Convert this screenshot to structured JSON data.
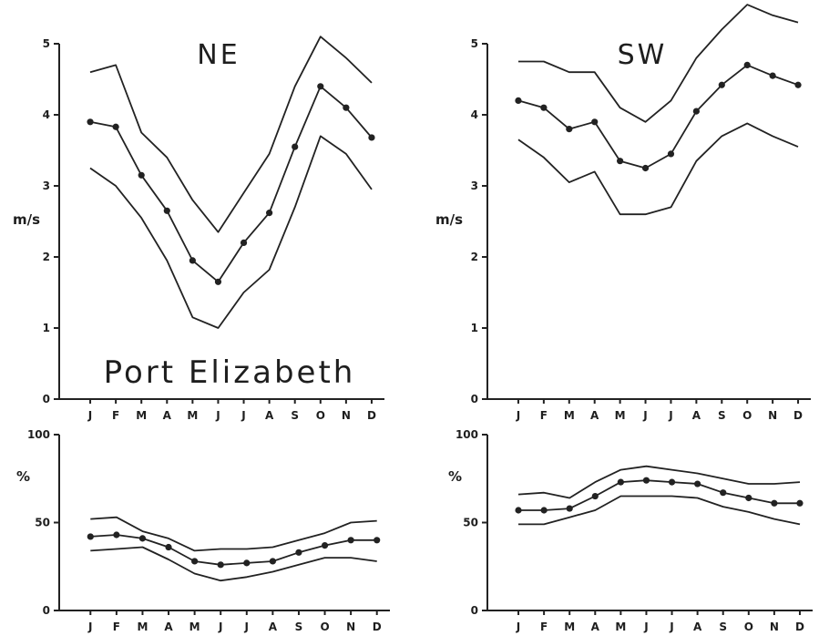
{
  "figure": {
    "station_label": "Port Elizabeth",
    "colors": {
      "ink": "#1e1e1e",
      "background": "#ffffff"
    }
  },
  "chart_data": [
    {
      "id": "ne_speed",
      "type": "line",
      "title": "NE",
      "ylabel": "m/s",
      "xlabel": "",
      "ylim": [
        0,
        5
      ],
      "yticks": [
        "0",
        "1",
        "2",
        "3",
        "4",
        "5"
      ],
      "categories": [
        "J",
        "F",
        "M",
        "A",
        "M",
        "J",
        "J",
        "A",
        "S",
        "O",
        "N",
        "D"
      ],
      "series": [
        {
          "role": "upper",
          "values": [
            4.6,
            4.7,
            3.75,
            3.4,
            2.8,
            2.35,
            2.9,
            3.45,
            4.4,
            5.1,
            4.8,
            4.45
          ]
        },
        {
          "role": "mean",
          "markers": true,
          "values": [
            3.9,
            3.83,
            3.15,
            2.65,
            1.95,
            1.65,
            2.2,
            2.62,
            3.55,
            4.4,
            4.1,
            3.68
          ]
        },
        {
          "role": "lower",
          "values": [
            3.25,
            3.0,
            2.55,
            1.95,
            1.15,
            1.0,
            1.5,
            1.82,
            2.7,
            3.7,
            3.45,
            2.95
          ]
        }
      ]
    },
    {
      "id": "sw_speed",
      "type": "line",
      "title": "SW",
      "ylabel": "m/s",
      "xlabel": "",
      "ylim": [
        0,
        5
      ],
      "yticks": [
        "0",
        "1",
        "2",
        "3",
        "4",
        "5"
      ],
      "categories": [
        "J",
        "F",
        "M",
        "A",
        "M",
        "J",
        "J",
        "A",
        "S",
        "O",
        "N",
        "D"
      ],
      "series": [
        {
          "role": "upper",
          "values": [
            4.75,
            4.75,
            4.6,
            4.6,
            4.1,
            3.9,
            4.2,
            4.8,
            5.2,
            5.55,
            5.4,
            5.3
          ]
        },
        {
          "role": "mean",
          "markers": true,
          "values": [
            4.2,
            4.1,
            3.8,
            3.9,
            3.35,
            3.25,
            3.45,
            4.05,
            4.42,
            4.7,
            4.55,
            4.42
          ]
        },
        {
          "role": "lower",
          "values": [
            3.65,
            3.4,
            3.05,
            3.2,
            2.6,
            2.6,
            2.7,
            3.35,
            3.7,
            3.88,
            3.7,
            3.55
          ]
        }
      ]
    },
    {
      "id": "ne_percent",
      "type": "line",
      "title": "",
      "ylabel": "%",
      "xlabel": "",
      "ylim": [
        0,
        100
      ],
      "yticks": [
        "0",
        "50",
        "100"
      ],
      "categories": [
        "J",
        "F",
        "M",
        "A",
        "M",
        "J",
        "J",
        "A",
        "S",
        "O",
        "N",
        "D"
      ],
      "series": [
        {
          "role": "upper",
          "values": [
            52,
            53,
            45,
            41,
            34,
            35,
            35,
            36,
            40,
            44,
            50,
            51
          ]
        },
        {
          "role": "mean",
          "markers": true,
          "values": [
            42,
            43,
            41,
            36,
            28,
            26,
            27,
            28,
            33,
            37,
            40,
            40
          ]
        },
        {
          "role": "lower",
          "values": [
            34,
            35,
            36,
            29,
            21,
            17,
            19,
            22,
            26,
            30,
            30,
            28
          ]
        }
      ]
    },
    {
      "id": "sw_percent",
      "type": "line",
      "title": "",
      "ylabel": "%",
      "xlabel": "",
      "ylim": [
        0,
        100
      ],
      "yticks": [
        "0",
        "50",
        "100"
      ],
      "categories": [
        "J",
        "F",
        "M",
        "A",
        "M",
        "J",
        "J",
        "A",
        "S",
        "O",
        "N",
        "D"
      ],
      "series": [
        {
          "role": "upper",
          "values": [
            66,
            67,
            64,
            73,
            80,
            82,
            80,
            78,
            75,
            72,
            72,
            73
          ]
        },
        {
          "role": "mean",
          "markers": true,
          "values": [
            57,
            57,
            58,
            65,
            73,
            74,
            73,
            72,
            67,
            64,
            61,
            61
          ]
        },
        {
          "role": "lower",
          "values": [
            49,
            49,
            53,
            57,
            65,
            65,
            65,
            64,
            59,
            56,
            52,
            49
          ]
        }
      ]
    }
  ]
}
